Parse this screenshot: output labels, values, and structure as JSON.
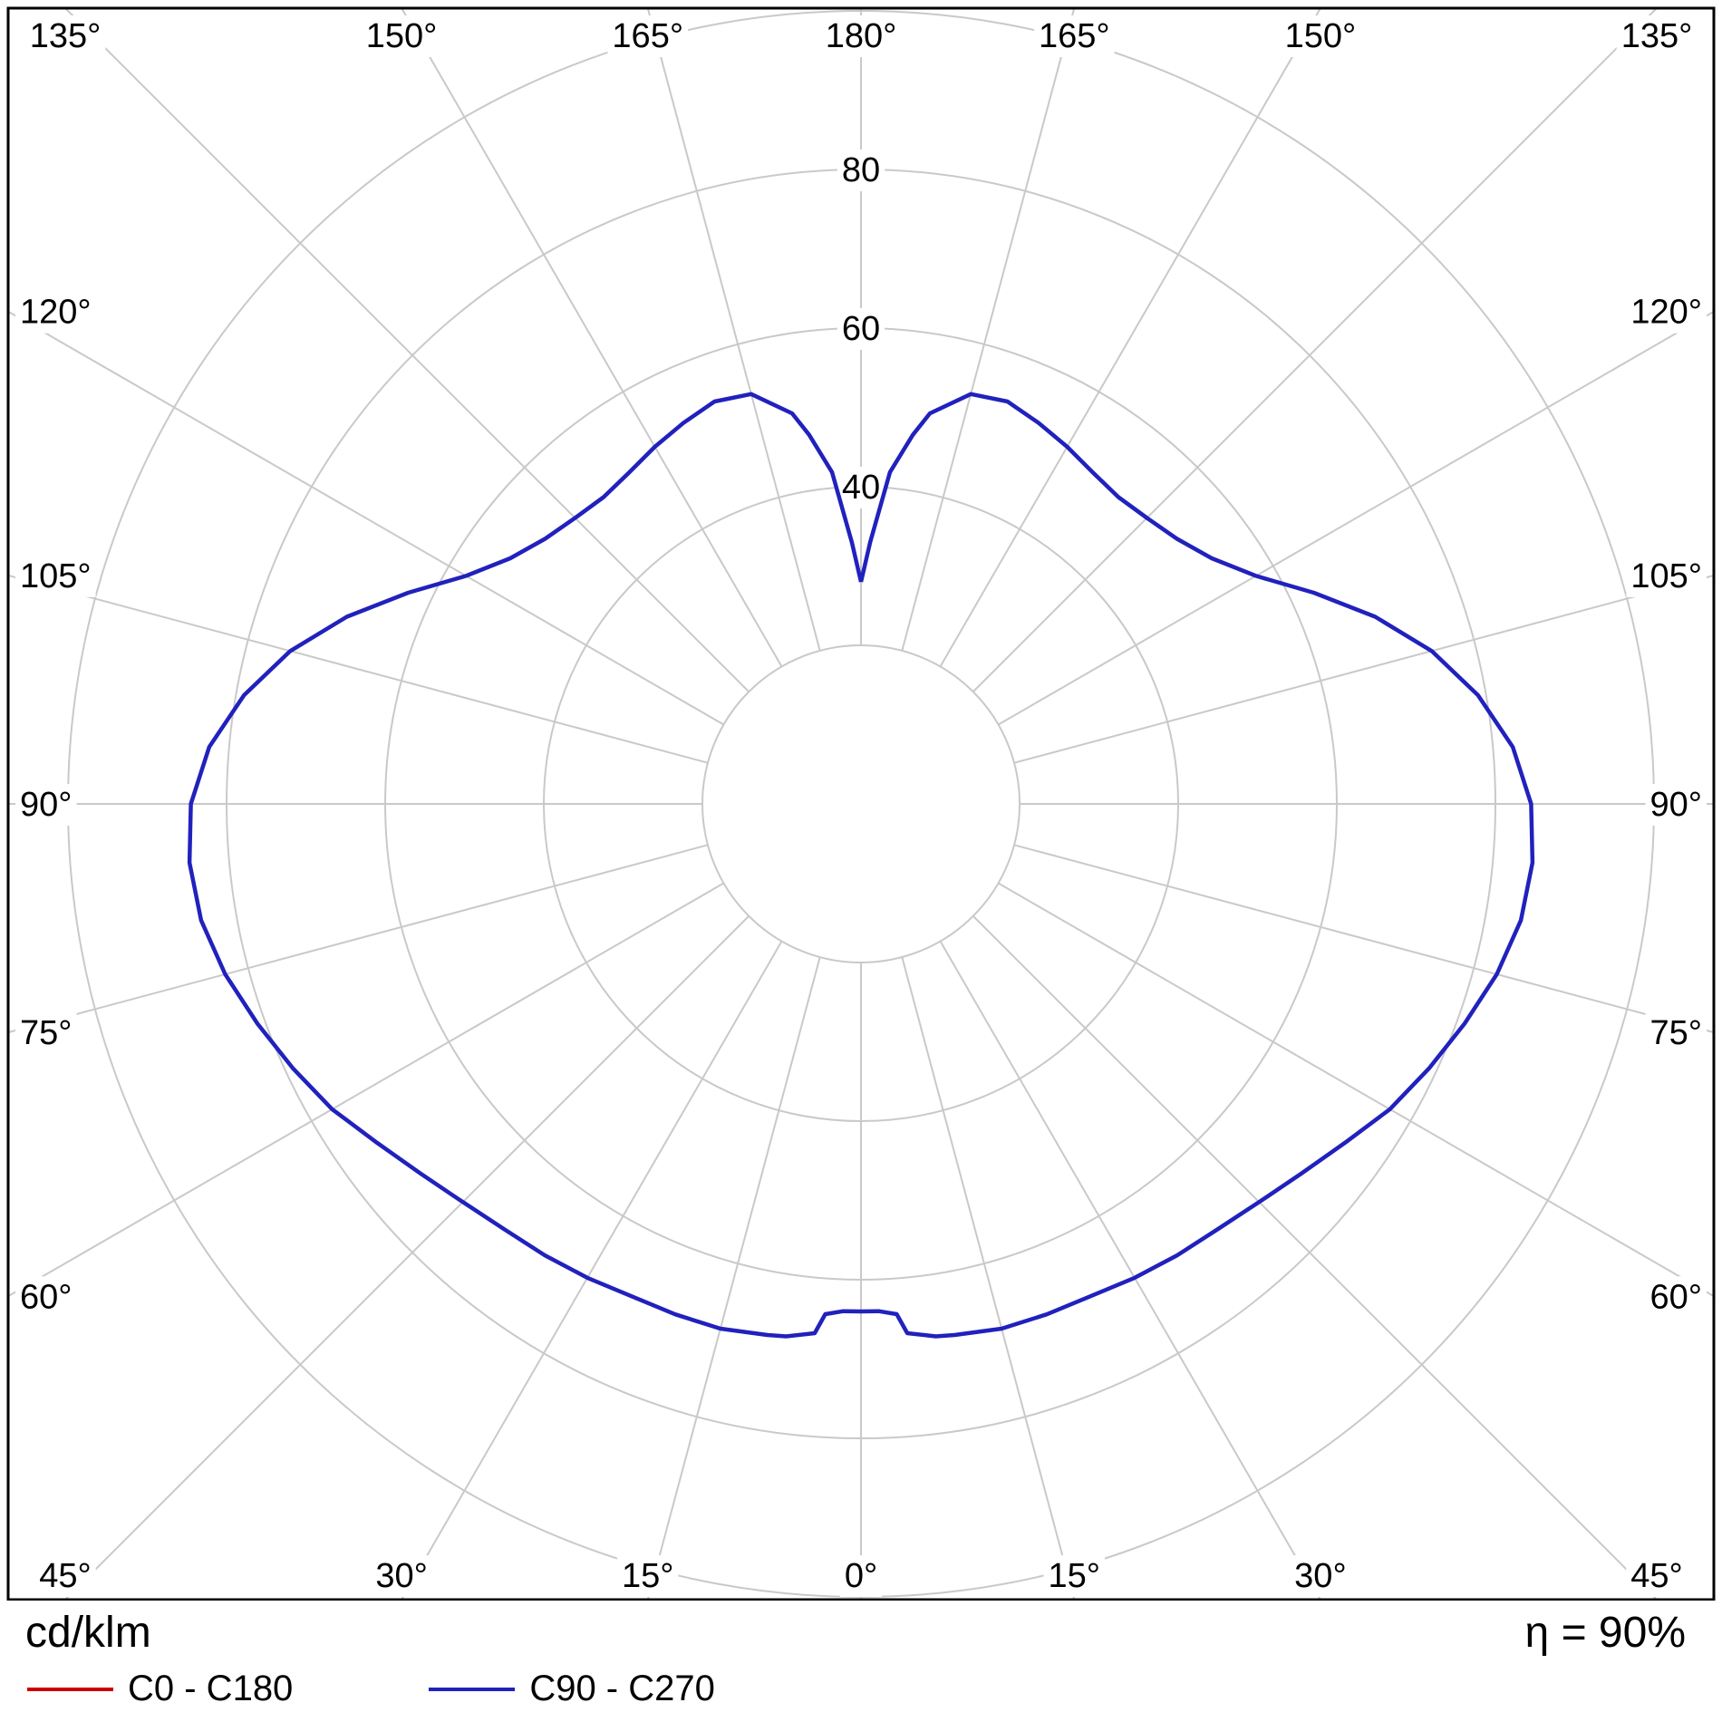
{
  "footer": {
    "unit_label": "cd/klm",
    "efficiency": "η = 90%"
  },
  "chart_data": {
    "type": "polar",
    "description": "Luminaire luminous intensity distribution curve (polar photometric diagram)",
    "radial_unit": "cd/klm",
    "efficiency": "η = 90%",
    "rmax": 100,
    "radial_ticks": [
      20,
      40,
      60,
      80,
      100
    ],
    "radial_tick_labels": [
      "40",
      "60",
      "80"
    ],
    "angle_step_deg": 15,
    "angle_labels": [
      "0°",
      "15°",
      "30°",
      "45°",
      "60°",
      "75°",
      "90°",
      "105°",
      "120°",
      "135°",
      "150°",
      "165°",
      "180°"
    ],
    "grid_color": "#c9c9c9",
    "gamma_deg": [
      0,
      2,
      4,
      5,
      8,
      10,
      15,
      20,
      25,
      30,
      35,
      40,
      45,
      50,
      55,
      60,
      65,
      70,
      75,
      80,
      85,
      90,
      95,
      100,
      105,
      110,
      115,
      120,
      125,
      130,
      135,
      140,
      145,
      150,
      155,
      160,
      165,
      170,
      172,
      175,
      178,
      180
    ],
    "series": [
      {
        "name": "C0 - C180",
        "color": "#cc0000",
        "note": "coincides with C90 - C270 curve (hidden beneath it)",
        "values": [
          64,
          64,
          64.5,
          67,
          67.8,
          68,
          68.5,
          68.5,
          68.5,
          69,
          69.5,
          70,
          71,
          72.5,
          74.5,
          77,
          79,
          81,
          83,
          84.5,
          85,
          84.5,
          82.5,
          79,
          74.5,
          69,
          63,
          57.5,
          54,
          52,
          51,
          50.5,
          51,
          52,
          53,
          54,
          53.5,
          50,
          47,
          42,
          33,
          28
        ]
      },
      {
        "name": "C90 - C270",
        "color": "#2121bd",
        "values": [
          64,
          64,
          64.5,
          67,
          67.8,
          68,
          68.5,
          68.5,
          68.5,
          69,
          69.5,
          70,
          71,
          72.5,
          74.5,
          77,
          79,
          81,
          83,
          84.5,
          85,
          84.5,
          82.5,
          79,
          74.5,
          69,
          63,
          57.5,
          54,
          52,
          51,
          50.5,
          51,
          52,
          53,
          54,
          53.5,
          50,
          47,
          42,
          33,
          28
        ]
      }
    ]
  }
}
